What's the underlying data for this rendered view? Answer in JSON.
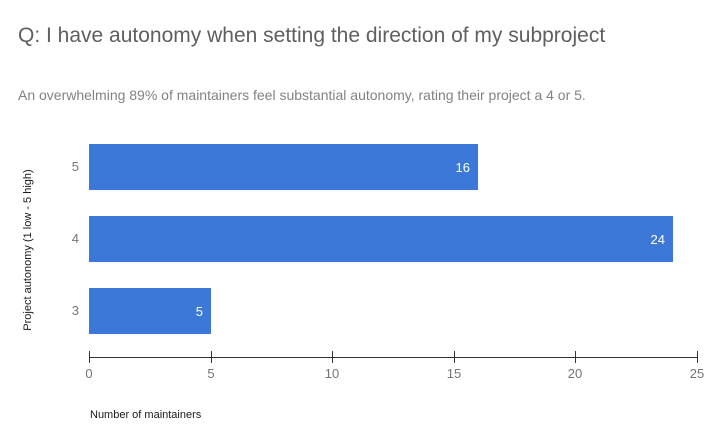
{
  "chart_data": {
    "type": "bar",
    "orientation": "horizontal",
    "title": "Q: I have autonomy when setting the direction of my subproject",
    "subtitle": "An overwhelming 89% of maintainers feel substantial autonomy, rating their project a 4 or 5.",
    "categories": [
      "5",
      "4",
      "3"
    ],
    "values": [
      16,
      24,
      5
    ],
    "value_labels": [
      "16",
      "24",
      "5"
    ],
    "xlabel": "Number of maintainers",
    "ylabel": "Project autonomy (1 low - 5 high)",
    "xlim": [
      0,
      25
    ],
    "xticks": [
      "0",
      "5",
      "10",
      "15",
      "20",
      "25"
    ],
    "grid": false,
    "legend": "none"
  },
  "colors": {
    "bar": "#3c78d8",
    "title": "#5f5f5f",
    "subtitle": "#828282",
    "tick_label": "#757575",
    "axis_line": "#333333",
    "value_label": "#ffffff",
    "background": "#ffffff"
  }
}
